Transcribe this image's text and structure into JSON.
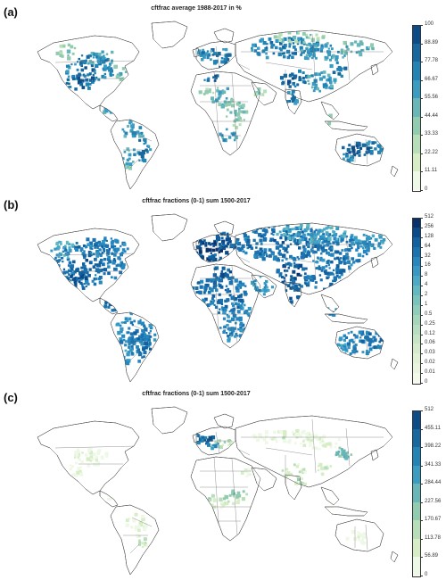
{
  "panels": [
    {
      "label": "(a)",
      "title": "cftfrac average 1988-2017 in %",
      "colorbar": {
        "ticks": [
          "100",
          "88.89",
          "77.78",
          "66.67",
          "55.56",
          "44.44",
          "33.33",
          "22.22",
          "11.11",
          "0"
        ],
        "colors": [
          "#0d4d87",
          "#17689f",
          "#2283b5",
          "#3b9cc2",
          "#68b6b8",
          "#91cbb0",
          "#b6dfb8",
          "#d6edc6",
          "#eef8e6"
        ]
      },
      "pattern": "cropland-density"
    },
    {
      "label": "(b)",
      "title": "cftfrac fractions (0-1) sum 1500-2017",
      "colorbar": {
        "ticks": [
          "512",
          "256",
          "128",
          "64",
          "32",
          "16",
          "8",
          "4",
          "2",
          "1",
          "0.5",
          "0.25",
          "0.12",
          "0.06",
          "0.03",
          "0.02",
          "0.01",
          "0"
        ],
        "colors": [
          "#08306b",
          "#0b4a8a",
          "#11609f",
          "#1a73b0",
          "#2587be",
          "#3699c5",
          "#4aaac6",
          "#5fb8c2",
          "#78c4bd",
          "#8ecdba",
          "#a3d6ba",
          "#b6dec0",
          "#c6e5c6",
          "#d5ebcd",
          "#e1f1d6",
          "#eaf5e0",
          "#f3faec"
        ]
      },
      "pattern": "broad-coverage"
    },
    {
      "label": "(c)",
      "title": "cftfrac fractions (0-1) sum 1500-2017",
      "colorbar": {
        "ticks": [
          "512",
          "455.11",
          "398.22",
          "341.33",
          "284.44",
          "227.56",
          "170.67",
          "113.78",
          "56.89",
          "0"
        ],
        "colors": [
          "#0d4d87",
          "#17689f",
          "#2283b5",
          "#3b9cc2",
          "#68b6b8",
          "#91cbb0",
          "#b6dfb8",
          "#d6edc6",
          "#eef8e6"
        ]
      },
      "pattern": "sparse-hotspots"
    }
  ]
}
